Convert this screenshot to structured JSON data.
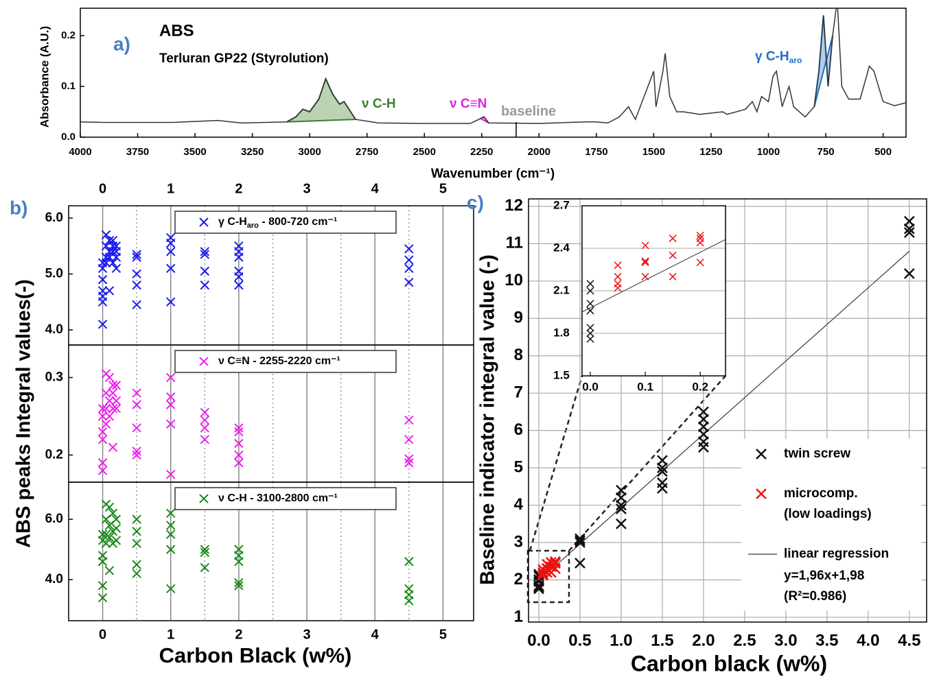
{
  "chart_data": [
    {
      "type": "line",
      "label": "a)",
      "title": "ABS",
      "subtitle": "Terluran GP22 (Styrolution)",
      "xlabel": "Wavenumber (cm⁻¹)",
      "ylabel": "Absorbance (A.U.)",
      "xlim": [
        4000,
        400
      ],
      "xticks": [
        4000,
        3750,
        3500,
        3250,
        3000,
        2750,
        2500,
        2250,
        2000,
        1750,
        1500,
        1250,
        1000,
        750,
        500
      ],
      "ylim": [
        0,
        0.254
      ],
      "yticks": [
        {
          "value": 0,
          "label": "0.0"
        },
        0.1,
        0.2
      ],
      "x": [
        4000,
        3900,
        3600,
        3400,
        3300,
        3100,
        3060,
        3030,
        3000,
        2960,
        2930,
        2900,
        2870,
        2850,
        2800,
        2700,
        2500,
        2300,
        2240,
        2220,
        2000,
        1800,
        1750,
        1700,
        1650,
        1610,
        1580,
        1500,
        1490,
        1460,
        1450,
        1430,
        1400,
        1370,
        1300,
        1200,
        1180,
        1100,
        1070,
        1050,
        1030,
        1000,
        980,
        965,
        940,
        910,
        890,
        840,
        800,
        780,
        760,
        740,
        720,
        700,
        680,
        650,
        600,
        560,
        540,
        500,
        450,
        400
      ],
      "values": [
        0.03,
        0.029,
        0.029,
        0.033,
        0.028,
        0.03,
        0.04,
        0.055,
        0.05,
        0.075,
        0.115,
        0.085,
        0.065,
        0.07,
        0.035,
        0.028,
        0.027,
        0.027,
        0.04,
        0.028,
        0.027,
        0.03,
        0.03,
        0.028,
        0.04,
        0.06,
        0.035,
        0.13,
        0.06,
        0.13,
        0.165,
        0.08,
        0.05,
        0.05,
        0.045,
        0.05,
        0.045,
        0.055,
        0.07,
        0.05,
        0.08,
        0.07,
        0.12,
        0.13,
        0.06,
        0.1,
        0.06,
        0.04,
        0.06,
        0.13,
        0.24,
        0.1,
        0.2,
        0.27,
        0.1,
        0.075,
        0.075,
        0.14,
        0.13,
        0.07,
        0.062,
        0.068
      ],
      "color": "#333333",
      "peaks": [
        {
          "label": "ν C-H",
          "range": [
            3100,
            2800
          ],
          "color": "#3d7f2a"
        },
        {
          "label": "ν C≡N",
          "range": [
            2255,
            2220
          ],
          "color": "#e020e0"
        },
        {
          "label": "γ C-H",
          "label_sub": "aro",
          "range": [
            800,
            720
          ],
          "color": "#1f6fc8"
        }
      ],
      "annotation": "baseline"
    },
    {
      "type": "scatter",
      "label": "b)",
      "xlabel": "Carbon Black (w%)",
      "ylabel": "ABS peaks Integral values(-)",
      "xlim": [
        -0.5,
        5.45
      ],
      "xticks": [
        0,
        1,
        2,
        3,
        4,
        5
      ],
      "minor_xticks": [
        0.5,
        1.5,
        2.5,
        3.5,
        4.5
      ],
      "subplots": [
        {
          "ylim": [
            3.73,
            6.22
          ],
          "yticks": [
            {
              "value": 4,
              "label": "4.0"
            },
            {
              "value": 5,
              "label": "5.0"
            },
            {
              "value": 6,
              "label": "6.0"
            }
          ],
          "series": [
            {
              "name": "γ C-H",
              "name_sub": "aro",
              "name_end": " - 800-720 cm⁻¹",
              "color": "#1a1aee",
              "x": [
                0,
                0,
                0,
                0,
                0,
                0,
                0,
                0.05,
                0.05,
                0.05,
                0.05,
                0.1,
                0.1,
                0.1,
                0.1,
                0.15,
                0.15,
                0.15,
                0.15,
                0.2,
                0.2,
                0.2,
                0.2,
                0.5,
                0.5,
                0.5,
                0.5,
                0.5,
                1,
                1,
                1,
                1,
                1,
                1.5,
                1.5,
                1.5,
                1.5,
                2,
                2,
                2,
                2,
                2,
                2,
                4.5,
                4.5,
                4.5,
                4.5
              ],
              "values": [
                4.1,
                4.5,
                4.6,
                4.7,
                4.9,
                5.1,
                5.2,
                5.2,
                5.3,
                5.5,
                5.7,
                5.3,
                5.4,
                5.6,
                4.7,
                5.2,
                5.4,
                5.5,
                5.6,
                5.1,
                5.3,
                5.4,
                5.5,
                4.45,
                4.8,
                5.0,
                5.3,
                5.35,
                4.5,
                5.1,
                5.4,
                5.55,
                5.65,
                4.8,
                5.05,
                5.35,
                5.4,
                4.8,
                4.95,
                5.05,
                5.3,
                5.4,
                5.5,
                4.85,
                5.1,
                5.25,
                5.45
              ]
            }
          ]
        },
        {
          "ylim": [
            0.165,
            0.342
          ],
          "yticks": [
            0.2,
            0.3
          ],
          "series": [
            {
              "name": "ν C≡N",
              "name_end": " - 2255-2220 cm⁻¹",
              "color": "#ee20ee",
              "x": [
                0,
                0,
                0,
                0,
                0,
                0,
                0.05,
                0.05,
                0.05,
                0.05,
                0.1,
                0.1,
                0.1,
                0.15,
                0.15,
                0.15,
                0.15,
                0.2,
                0.2,
                0.2,
                0.5,
                0.5,
                0.5,
                0.5,
                0.5,
                1,
                1,
                1,
                1,
                1,
                1.5,
                1.5,
                1.5,
                1.5,
                2,
                2,
                2,
                2,
                2,
                4.5,
                4.5,
                4.5,
                4.5
              ],
              "values": [
                0.18,
                0.19,
                0.22,
                0.23,
                0.25,
                0.26,
                0.24,
                0.26,
                0.28,
                0.305,
                0.25,
                0.27,
                0.3,
                0.21,
                0.26,
                0.28,
                0.29,
                0.26,
                0.27,
                0.29,
                0.2,
                0.205,
                0.235,
                0.265,
                0.28,
                0.175,
                0.24,
                0.265,
                0.275,
                0.3,
                0.22,
                0.235,
                0.245,
                0.255,
                0.19,
                0.2,
                0.215,
                0.23,
                0.235,
                0.19,
                0.195,
                0.22,
                0.245
              ]
            }
          ]
        },
        {
          "ylim": [
            2.64,
            7.23
          ],
          "yticks": [
            {
              "value": 4,
              "label": "4.0"
            },
            {
              "value": 6,
              "label": "6.0"
            }
          ],
          "series": [
            {
              "name": "ν C-H",
              "name_end": " - 3100-2800 cm⁻¹",
              "color": "#1a8a1a",
              "x": [
                0,
                0,
                0,
                0,
                0,
                0,
                0.05,
                0.05,
                0.05,
                0.05,
                0.1,
                0.1,
                0.1,
                0.1,
                0.15,
                0.15,
                0.15,
                0.2,
                0.2,
                0.2,
                0.5,
                0.5,
                0.5,
                0.5,
                0.5,
                1,
                1,
                1,
                1,
                1,
                1.5,
                1.5,
                1.5,
                2,
                2,
                2,
                2,
                2,
                4.5,
                4.5,
                4.5,
                4.5
              ],
              "values": [
                3.4,
                3.8,
                4.6,
                4.8,
                5.3,
                5.5,
                5.2,
                5.5,
                6.0,
                6.5,
                4.3,
                5.4,
                5.8,
                6.4,
                5.2,
                5.6,
                6.2,
                5.3,
                5.7,
                6.0,
                4.2,
                4.5,
                5.2,
                5.6,
                6.0,
                3.7,
                5.0,
                5.5,
                5.8,
                6.2,
                4.4,
                4.9,
                5.0,
                3.8,
                3.9,
                4.6,
                4.8,
                5.0,
                3.3,
                3.5,
                3.7,
                4.6
              ]
            }
          ]
        }
      ]
    },
    {
      "type": "scatter",
      "label": "c)",
      "xlabel": "Carbon black (w%)",
      "ylabel": "Baseline indicator integral value (-)",
      "xlim": [
        -0.125,
        4.71
      ],
      "xticks": [
        {
          "value": 0,
          "label": "0.0"
        },
        0.5,
        {
          "value": 1,
          "label": "1.0"
        },
        1.5,
        {
          "value": 2,
          "label": "2.0"
        },
        2.5,
        {
          "value": 3,
          "label": "3.0"
        },
        3.5,
        {
          "value": 4,
          "label": "4.0"
        },
        4.5
      ],
      "ylim": [
        0.87,
        12.2
      ],
      "yticks": [
        1,
        2,
        3,
        4,
        5,
        6,
        7,
        8,
        9,
        10,
        11,
        12
      ],
      "grid": true,
      "series": [
        {
          "name": "twin screw",
          "color": "#111111",
          "x": [
            0,
            0,
            0,
            0,
            0,
            0,
            0,
            0.5,
            0.5,
            0.5,
            0.5,
            1,
            1,
            1,
            1,
            1,
            1.5,
            1.5,
            1.5,
            1.5,
            1.5,
            2,
            2,
            2,
            2,
            2,
            2,
            4.5,
            4.5,
            4.5,
            4.5
          ],
          "values": [
            1.76,
            1.8,
            1.84,
            1.96,
            2.01,
            2.1,
            2.15,
            2.45,
            3.0,
            3.05,
            3.1,
            3.5,
            3.9,
            4.0,
            4.2,
            4.4,
            4.45,
            4.6,
            4.9,
            5.0,
            5.2,
            5.55,
            5.7,
            5.9,
            6.1,
            6.3,
            6.5,
            10.2,
            11.3,
            11.4,
            11.6
          ]
        },
        {
          "name": "microcomp.",
          "name_line2": "(low loadings)",
          "color": "#ee1111",
          "x": [
            0.05,
            0.05,
            0.05,
            0.05,
            0.1,
            0.1,
            0.1,
            0.1,
            0.15,
            0.15,
            0.15,
            0.2,
            0.2,
            0.2,
            0.2
          ],
          "values": [
            2.12,
            2.15,
            2.2,
            2.28,
            2.2,
            2.3,
            2.31,
            2.42,
            2.2,
            2.35,
            2.47,
            2.3,
            2.44,
            2.47,
            2.49
          ]
        }
      ],
      "fit": {
        "name": "linear regression",
        "equation": "y=1,96x+1,98",
        "r2_label": "(R²=0.986)",
        "slope": 1.96,
        "intercept": 1.98,
        "color": "#333333"
      },
      "inset": {
        "xlim": [
          -0.015,
          0.246
        ],
        "xticks": [
          {
            "value": 0,
            "label": "0.0"
          },
          0.1,
          0.2
        ],
        "ylim": [
          1.5,
          2.7
        ],
        "yticks": [
          1.5,
          1.8,
          2.1,
          2.4,
          2.7
        ]
      }
    }
  ]
}
